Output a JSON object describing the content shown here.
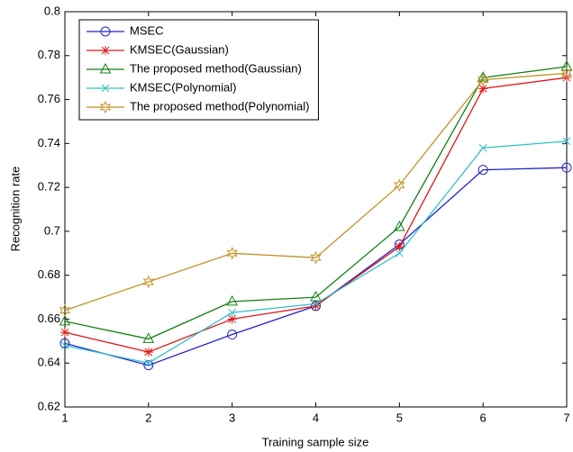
{
  "chart_data": {
    "type": "line",
    "xlabel": "Training sample size",
    "ylabel": "Recognition rate",
    "x": [
      1,
      2,
      3,
      4,
      5,
      6,
      7
    ],
    "xlim": [
      1,
      7
    ],
    "xticks": [
      1,
      2,
      3,
      4,
      5,
      6,
      7
    ],
    "ylim": [
      0.62,
      0.8
    ],
    "yticks": [
      0.62,
      0.64,
      0.66,
      0.68,
      0.7,
      0.72,
      0.74,
      0.76,
      0.78,
      0.8
    ],
    "legend_position": "upper-left",
    "series": [
      {
        "name": "MSEC",
        "color": "#2424c8",
        "marker": "circle",
        "values": [
          0.649,
          0.639,
          0.653,
          0.666,
          0.694,
          0.728,
          0.729
        ]
      },
      {
        "name": "KMSEC(Gaussian)",
        "color": "#e01818",
        "marker": "asterisk",
        "values": [
          0.654,
          0.645,
          0.66,
          0.666,
          0.693,
          0.765,
          0.77
        ]
      },
      {
        "name": "The proposed method(Gaussian)",
        "color": "#148214",
        "marker": "triangle",
        "values": [
          0.659,
          0.651,
          0.668,
          0.67,
          0.702,
          0.77,
          0.775
        ]
      },
      {
        "name": "KMSEC(Polynomial)",
        "color": "#30c0c8",
        "marker": "cross",
        "values": [
          0.648,
          0.64,
          0.663,
          0.667,
          0.69,
          0.738,
          0.741
        ]
      },
      {
        "name": "The proposed method(Polynomial)",
        "color": "#c09428",
        "marker": "hexagram",
        "values": [
          0.664,
          0.677,
          0.69,
          0.688,
          0.721,
          0.769,
          0.772
        ]
      }
    ]
  }
}
